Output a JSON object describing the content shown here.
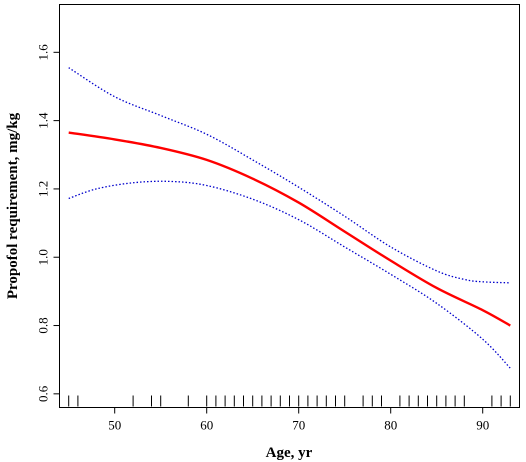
{
  "chart_data": {
    "type": "line",
    "title": "",
    "xlabel": "Age, yr",
    "ylabel": "Propofol requirement, mg/kg",
    "xlim": [
      44,
      94
    ],
    "ylim": [
      0.56,
      1.74
    ],
    "x_ticks": [
      50,
      60,
      70,
      80,
      90
    ],
    "y_ticks": [
      0.6,
      0.8,
      1.0,
      1.2,
      1.4,
      1.6
    ],
    "y_tick_labels": [
      "0.6",
      "0.8",
      "1.0",
      "1.2",
      "1.4",
      "1.6"
    ],
    "grid": false,
    "legend": "none",
    "series": [
      {
        "role": "estimate",
        "color": "#ff0000",
        "style": "solid",
        "x": [
          45,
          50,
          55,
          60,
          65,
          70,
          75,
          80,
          85,
          90,
          93
        ],
        "y": [
          1.365,
          1.345,
          1.32,
          1.285,
          1.23,
          1.16,
          1.075,
          0.99,
          0.91,
          0.845,
          0.8
        ]
      },
      {
        "role": "upper-ci",
        "color": "#0000cc",
        "style": "dotted",
        "x": [
          45,
          50,
          55,
          60,
          65,
          70,
          75,
          80,
          85,
          88,
          90,
          93
        ],
        "y": [
          1.555,
          1.47,
          1.415,
          1.36,
          1.285,
          1.205,
          1.12,
          1.03,
          0.96,
          0.935,
          0.928,
          0.925
        ]
      },
      {
        "role": "lower-ci",
        "color": "#0000cc",
        "style": "dotted",
        "x": [
          45,
          48,
          52,
          56,
          60,
          65,
          70,
          75,
          80,
          85,
          90,
          93
        ],
        "y": [
          1.172,
          1.2,
          1.218,
          1.222,
          1.21,
          1.17,
          1.11,
          1.03,
          0.95,
          0.865,
          0.76,
          0.675
        ]
      }
    ],
    "rug": [
      45,
      46,
      52,
      54,
      55,
      58,
      60,
      61,
      62,
      63,
      64,
      65,
      66,
      67,
      68,
      69,
      70,
      71,
      72,
      73,
      74,
      75,
      77,
      78,
      79,
      81,
      82,
      83,
      84,
      85,
      86,
      87,
      88,
      91,
      92,
      93
    ]
  }
}
